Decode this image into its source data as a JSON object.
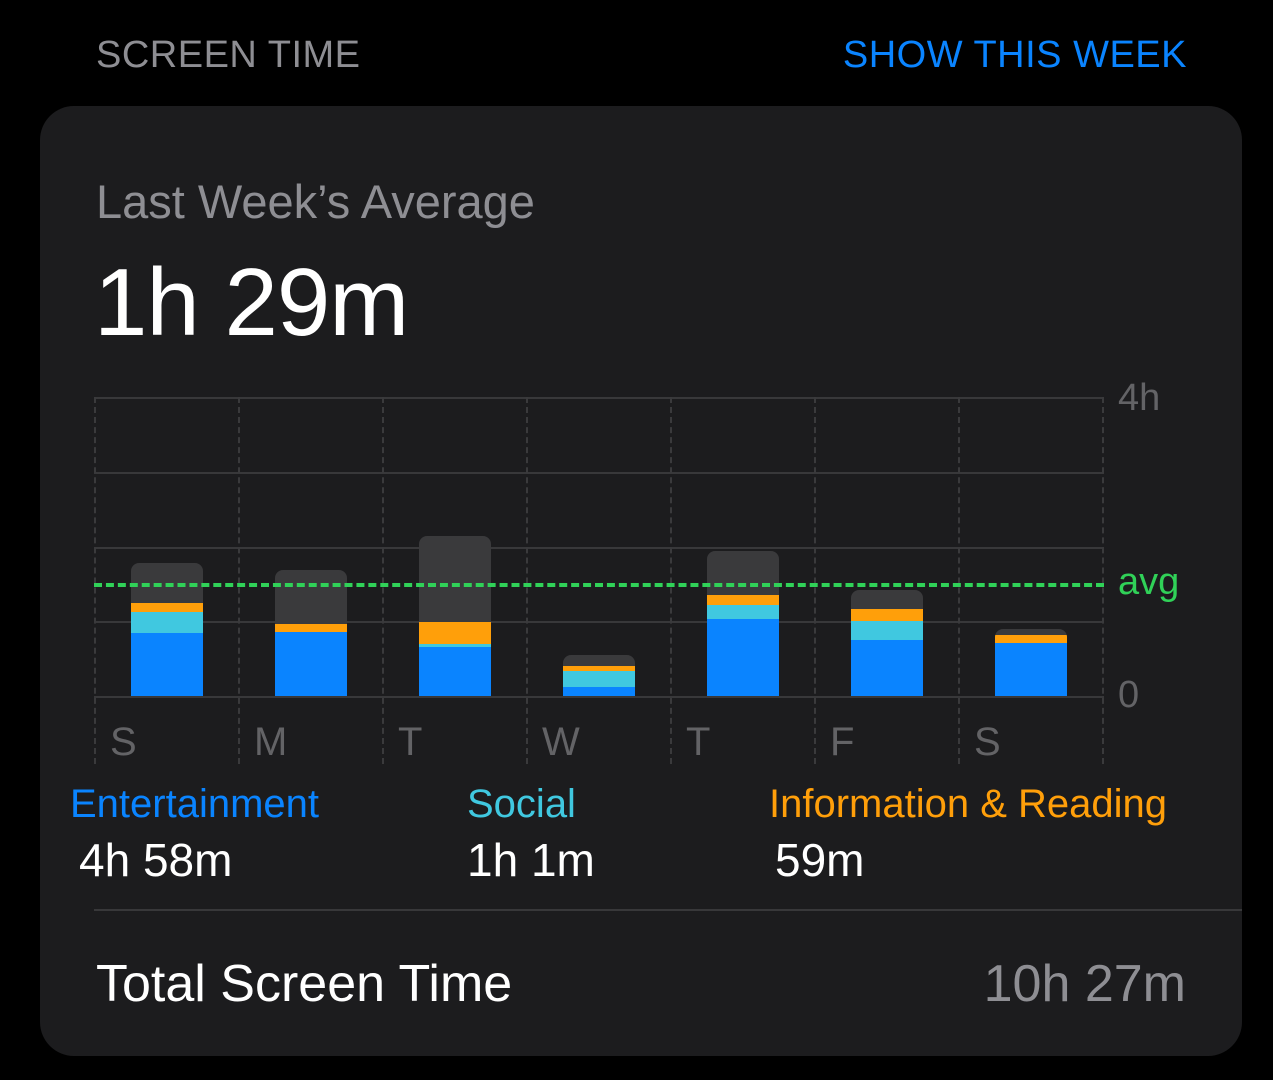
{
  "header": {
    "section_title": "SCREEN TIME",
    "action_link": "SHOW THIS WEEK"
  },
  "summary": {
    "label": "Last Week’s Average",
    "value": "1h 29m"
  },
  "colors": {
    "entertainment": "#0a84ff",
    "social": "#40c8e0",
    "information_reading": "#ff9f0a",
    "other": "#3a3a3c",
    "avg_line": "#30d158",
    "link": "#0a84ff"
  },
  "chart_data": {
    "type": "bar",
    "stacked": true,
    "title": "Last Week’s Average",
    "categories": [
      "S",
      "M",
      "T",
      "W",
      "T",
      "F",
      "S"
    ],
    "ylabel": "",
    "xlabel": "",
    "ylim": [
      0,
      4
    ],
    "y_unit": "hours",
    "y_ticks": [
      "0",
      "4h"
    ],
    "gridlines": [
      0,
      1,
      2,
      3,
      4
    ],
    "grid": true,
    "average_line": {
      "label": "avg",
      "value": 1.49
    },
    "series": [
      {
        "name": "Entertainment",
        "color": "#0a84ff",
        "values": [
          0.84,
          0.85,
          0.65,
          0.12,
          1.03,
          0.75,
          0.71
        ]
      },
      {
        "name": "Social",
        "color": "#40c8e0",
        "values": [
          0.29,
          0.0,
          0.05,
          0.21,
          0.19,
          0.25,
          0.0
        ]
      },
      {
        "name": "Information & Reading",
        "color": "#ff9f0a",
        "values": [
          0.12,
          0.11,
          0.29,
          0.07,
          0.13,
          0.17,
          0.11
        ]
      },
      {
        "name": "Other",
        "color": "#3a3a3c",
        "values": [
          0.53,
          0.72,
          1.15,
          0.15,
          0.59,
          0.25,
          0.07
        ]
      }
    ],
    "totals": [
      1.78,
      1.68,
      2.14,
      0.55,
      1.94,
      1.42,
      0.89
    ],
    "legend": [
      {
        "name": "Entertainment",
        "total": "4h 58m"
      },
      {
        "name": "Social",
        "total": "1h 1m"
      },
      {
        "name": "Information & Reading",
        "total": "59m"
      }
    ]
  },
  "chart": {
    "y_top_label": "4h",
    "y_bottom_label": "0",
    "avg_label": "avg",
    "days": [
      "S",
      "M",
      "T",
      "W",
      "T",
      "F",
      "S"
    ]
  },
  "legend": [
    {
      "name": "Entertainment",
      "value": "4h 58m",
      "color": "#0a84ff"
    },
    {
      "name": "Social",
      "value": "1h 1m",
      "color": "#40c8e0"
    },
    {
      "name": "Information & Reading",
      "value": "59m",
      "color": "#ff9f0a"
    }
  ],
  "total": {
    "label": "Total Screen Time",
    "value": "10h 27m"
  }
}
